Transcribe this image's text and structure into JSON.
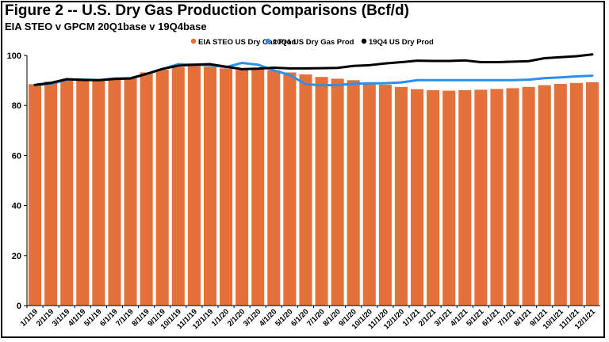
{
  "header": {
    "title": "Figure 2 -- U.S. Dry Gas Production Comparisons (Bcf/d)",
    "subtitle": "EIA STEO v GPCM 20Q1base v 19Q4base"
  },
  "chart_data": {
    "type": "bar",
    "ylim": [
      0,
      100
    ],
    "yticks": [
      0,
      20,
      40,
      60,
      80,
      100
    ],
    "grid": false,
    "legend_position": "top",
    "categories": [
      "1/1/19",
      "2/1/19",
      "3/1/19",
      "4/1/19",
      "5/1/19",
      "6/1/19",
      "7/1/19",
      "8/1/19",
      "9/1/19",
      "10/1/19",
      "11/1/19",
      "12/1/19",
      "1/1/20",
      "2/1/20",
      "3/1/20",
      "4/1/20",
      "5/1/20",
      "6/1/20",
      "7/1/20",
      "8/1/20",
      "9/1/20",
      "10/1/20",
      "11/1/20",
      "12/1/20",
      "1/1/21",
      "2/1/21",
      "3/1/21",
      "4/1/21",
      "5/1/21",
      "6/1/21",
      "7/1/21",
      "8/1/21",
      "9/1/21",
      "10/1/21",
      "11/1/21",
      "12/1/21"
    ],
    "series": [
      {
        "name": "EIA STEO US Dry Gas Prod",
        "kind": "bar",
        "color": "#E4703A",
        "values": [
          88.5,
          89.5,
          90.2,
          90.3,
          89.8,
          90.4,
          91.0,
          93.2,
          94.3,
          95.3,
          96.0,
          95.5,
          94.8,
          94.2,
          94.6,
          94.1,
          93.2,
          92.4,
          91.4,
          90.7,
          90.1,
          89.3,
          88.3,
          87.4,
          86.5,
          86.1,
          85.9,
          86.1,
          86.3,
          86.6,
          86.9,
          87.4,
          88.1,
          88.6,
          89.0,
          89.3
        ]
      },
      {
        "name": "20Q1 US Dry Gas Prod",
        "kind": "line",
        "color": "#2E8FE8",
        "values": [
          88.1,
          88.6,
          90.3,
          90.4,
          90.1,
          90.8,
          90.9,
          92.5,
          94.5,
          96.5,
          96.3,
          96.1,
          95.3,
          97.0,
          96.3,
          94.0,
          92.2,
          88.5,
          88.1,
          88.1,
          88.7,
          88.8,
          88.9,
          89.2,
          90.1,
          90.1,
          90.1,
          90.1,
          90.1,
          90.1,
          90.1,
          90.3,
          90.9,
          91.2,
          91.6,
          91.9
        ]
      },
      {
        "name": "19Q4 US Dry Prod",
        "kind": "line",
        "color": "#000000",
        "values": [
          88.2,
          89.0,
          90.5,
          90.2,
          90.1,
          90.6,
          90.8,
          92.6,
          94.6,
          95.9,
          96.3,
          96.5,
          95.5,
          94.5,
          94.7,
          95.1,
          94.8,
          94.8,
          94.9,
          95.0,
          95.8,
          96.1,
          96.8,
          97.3,
          97.9,
          97.8,
          97.8,
          98.0,
          97.3,
          97.3,
          97.5,
          97.7,
          98.9,
          99.3,
          99.7,
          100.4
        ]
      }
    ]
  }
}
